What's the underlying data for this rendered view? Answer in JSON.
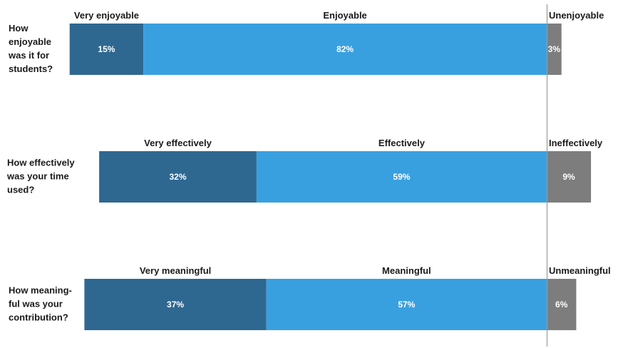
{
  "chart_data": {
    "type": "bar",
    "orientation": "diverging-horizontal-stacked",
    "title": "",
    "xlabel": "",
    "ylabel": "",
    "unit": "%",
    "rows": [
      {
        "question": [
          "How",
          "enjoyable",
          "was it for",
          "students?"
        ],
        "segments": [
          {
            "label": "Very enjoyable",
            "value": 15,
            "value_label": "15%",
            "color": "#2e6891"
          },
          {
            "label": "Enjoyable",
            "value": 82,
            "value_label": "82%",
            "color": "#39a0e0"
          },
          {
            "label": "Unenjoyable",
            "value": 3,
            "value_label": "3%",
            "color": "#7d7d7d"
          }
        ]
      },
      {
        "question": [
          "How effectively",
          "was your time",
          "used?"
        ],
        "segments": [
          {
            "label": "Very effectively",
            "value": 32,
            "value_label": "32%",
            "color": "#2e6891"
          },
          {
            "label": "Effectively",
            "value": 59,
            "value_label": "59%",
            "color": "#39a0e0"
          },
          {
            "label": "Ineffectively",
            "value": 9,
            "value_label": "9%",
            "color": "#7d7d7d"
          }
        ]
      },
      {
        "question": [
          "How meaning-",
          "ful was your",
          "contribution?"
        ],
        "segments": [
          {
            "label": "Very meaningful",
            "value": 37,
            "value_label": "37%",
            "color": "#2e6891"
          },
          {
            "label": "Meaningful",
            "value": 57,
            "value_label": "57%",
            "color": "#39a0e0"
          },
          {
            "label": "Unmeaningful",
            "value": 6,
            "value_label": "6%",
            "color": "#7d7d7d"
          }
        ]
      }
    ],
    "colors": {
      "very": "#2e6891",
      "positive": "#39a0e0",
      "negative": "#7d7d7d",
      "divider": "#9a9a9a"
    },
    "legend": "none",
    "grid": false
  }
}
